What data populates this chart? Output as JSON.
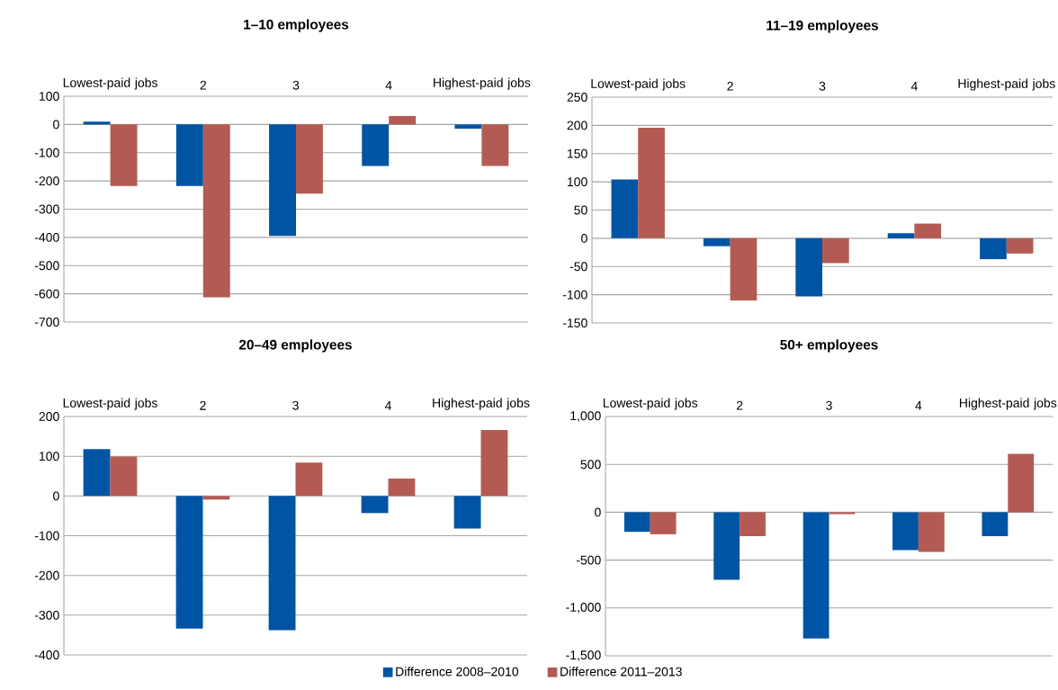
{
  "chart_data": [
    {
      "type": "bar",
      "title": "1–10 employees",
      "categories": [
        "Lowest-paid jobs",
        "2",
        "3",
        "4",
        "Highest-paid jobs"
      ],
      "ylim": [
        -700,
        100
      ],
      "yticks": [
        -700,
        -600,
        -500,
        -400,
        -300,
        -200,
        -100,
        0,
        100
      ],
      "grid": "y",
      "series": [
        {
          "color": "#0054a4",
          "values": [
            10,
            -218,
            -395,
            -147,
            -15
          ]
        },
        {
          "color": "#b35b52",
          "values": [
            -218,
            -612,
            -245,
            30,
            -147
          ]
        }
      ]
    },
    {
      "type": "bar",
      "title": "11–19 employees",
      "categories": [
        "Lowest-paid jobs",
        "2",
        "3",
        "4",
        "Highest-paid jobs"
      ],
      "ylim": [
        -150,
        250
      ],
      "yticks": [
        -150,
        -100,
        -50,
        0,
        50,
        100,
        150,
        200,
        250
      ],
      "grid": "y",
      "series": [
        {
          "color": "#0054a4",
          "values": [
            104,
            -14,
            -103,
            9,
            -37
          ]
        },
        {
          "color": "#b35b52",
          "values": [
            196,
            -110,
            -44,
            26,
            -27
          ]
        }
      ]
    },
    {
      "type": "bar",
      "title": "20–49 employees",
      "categories": [
        "Lowest-paid jobs",
        "2",
        "3",
        "4",
        "Highest-paid jobs"
      ],
      "ylim": [
        -400,
        200
      ],
      "yticks": [
        -400,
        -300,
        -200,
        -100,
        0,
        100,
        200
      ],
      "grid": "y",
      "series": [
        {
          "color": "#0054a4",
          "values": [
            118,
            -334,
            -338,
            -43,
            -82
          ]
        },
        {
          "color": "#b35b52",
          "values": [
            99,
            -9,
            84,
            44,
            166
          ]
        }
      ]
    },
    {
      "type": "bar",
      "title": "50+ employees",
      "categories": [
        "Lowest-paid jobs",
        "2",
        "3",
        "4",
        "Highest-paid jobs"
      ],
      "ylim": [
        -1500,
        1000
      ],
      "yticks": [
        {
          "value": -1500,
          "label": "-1,500"
        },
        {
          "value": -1000,
          "label": "-1,000"
        },
        -500,
        0,
        500,
        {
          "value": 1000,
          "label": "1,000"
        }
      ],
      "grid": "y",
      "legend": "bottom",
      "series": [
        {
          "name": "Difference 2008–2010",
          "color": "#0054a4",
          "values": [
            -205,
            -705,
            -1320,
            -395,
            -250
          ]
        },
        {
          "name": "Difference 2011–2013",
          "color": "#b35b52",
          "values": [
            -230,
            -250,
            -20,
            -415,
            610
          ]
        }
      ]
    }
  ]
}
